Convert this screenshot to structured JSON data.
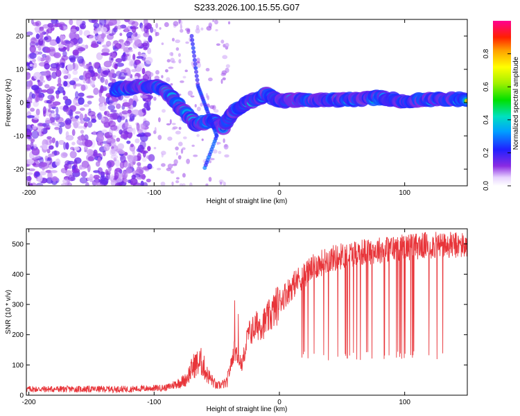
{
  "title": "S233.2026.100.15.55.G07",
  "colors": {
    "snr_line": "#e8353a",
    "frame": "#000000",
    "scatter_purple": "#7a20e0"
  },
  "chart_data": [
    {
      "type": "heatmap",
      "title": "S233.2026.100.15.55.G07",
      "xlabel": "Height of straight line (km)",
      "ylabel": "Frequency (Hz)",
      "xlim": [
        -202,
        150
      ],
      "ylim": [
        -25,
        25
      ],
      "xticks": [
        -200,
        -100,
        0,
        100
      ],
      "yticks": [
        -20,
        -10,
        0,
        10,
        20
      ],
      "colorbar": {
        "label": "Normalized spectral amplitude",
        "range": [
          0.0,
          1.0
        ],
        "ticks": [
          "0.0",
          "0.2",
          "0.4",
          "0.6",
          "0.8"
        ]
      },
      "ridge": [
        [
          -130,
          4.0,
          0.45
        ],
        [
          -120,
          4.5,
          0.35
        ],
        [
          -110,
          5.0,
          0.3
        ],
        [
          -100,
          4.8,
          0.45
        ],
        [
          -92,
          4.5,
          0.35
        ],
        [
          -85,
          1.0,
          0.4
        ],
        [
          -75,
          -3.0,
          0.35
        ],
        [
          -66,
          -7.0,
          0.3
        ],
        [
          -55,
          -5.0,
          0.35
        ],
        [
          -45,
          -7.5,
          0.35
        ],
        [
          -38,
          -3.0,
          0.45
        ],
        [
          -30,
          -1.0,
          0.5
        ],
        [
          -20,
          1.0,
          0.6
        ],
        [
          -10,
          2.5,
          0.55
        ],
        [
          0,
          0.5,
          0.6
        ],
        [
          20,
          0.8,
          0.75
        ],
        [
          40,
          0.8,
          0.85
        ],
        [
          60,
          1.0,
          0.8
        ],
        [
          80,
          1.5,
          0.7
        ],
        [
          100,
          0.5,
          0.6
        ],
        [
          120,
          1.0,
          0.7
        ],
        [
          150,
          1.0,
          0.75
        ]
      ],
      "side_branch": [
        [
          -70,
          20.0,
          0.25
        ],
        [
          -65,
          5.0,
          0.3
        ],
        [
          -58,
          -2.0,
          0.3
        ],
        [
          -50,
          -10.0,
          0.35
        ],
        [
          -60,
          -20.0,
          0.2
        ]
      ]
    },
    {
      "type": "line",
      "xlabel": "Height of straight line (km)",
      "ylabel": "SNR (10 * v/v)",
      "xlim": [
        -202,
        150
      ],
      "ylim": [
        0,
        550
      ],
      "xticks": [
        -200,
        -100,
        0,
        100
      ],
      "yticks": [
        0,
        100,
        200,
        300,
        400,
        500
      ],
      "series": [
        {
          "name": "SNR",
          "envelope": [
            [
              -202,
              20
            ],
            [
              -120,
              20
            ],
            [
              -90,
              25
            ],
            [
              -75,
              50
            ],
            [
              -68,
              100
            ],
            [
              -62,
              110
            ],
            [
              -58,
              70
            ],
            [
              -50,
              30
            ],
            [
              -42,
              40
            ],
            [
              -36,
              150
            ],
            [
              -30,
              100
            ],
            [
              -25,
              200
            ],
            [
              -18,
              230
            ],
            [
              -12,
              240
            ],
            [
              -6,
              270
            ],
            [
              0,
              310
            ],
            [
              10,
              360
            ],
            [
              20,
              400
            ],
            [
              30,
              430
            ],
            [
              40,
              450
            ],
            [
              60,
              470
            ],
            [
              80,
              480
            ],
            [
              100,
              490
            ],
            [
              120,
              495
            ],
            [
              150,
              495
            ]
          ],
          "dropout_range": [
            15,
            132
          ],
          "dropout_floor": 130
        }
      ]
    }
  ]
}
